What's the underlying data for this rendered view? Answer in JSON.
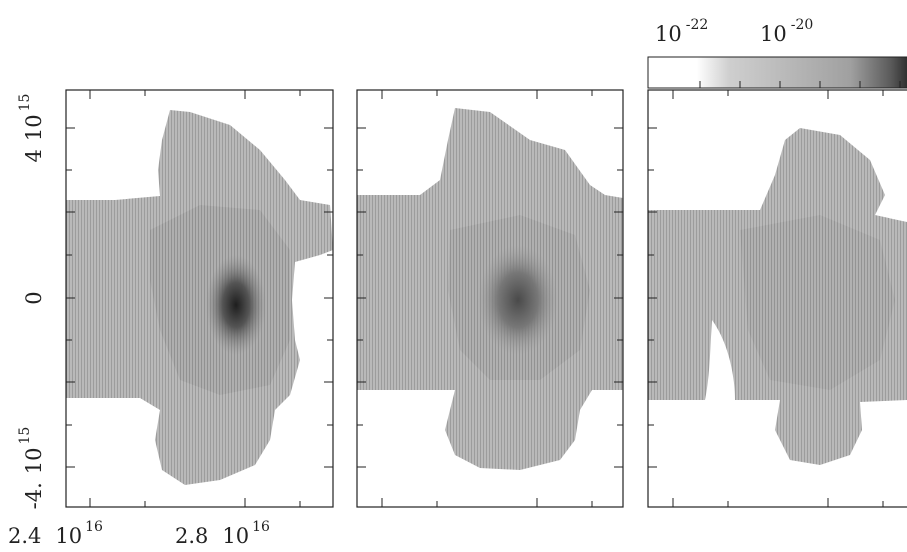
{
  "chart_data": {
    "type": "heatmap",
    "panels": [
      {
        "id": "panel-1",
        "x_tick_labels": [
          {
            "mantissa": "2.4",
            "base": "10",
            "exp": "16",
            "x": 2.4e+16
          },
          {
            "mantissa": "2.8",
            "base": "10",
            "exp": "16",
            "x": 2.8e+16
          }
        ],
        "y_tick_labels": [
          {
            "mantissa": "4",
            "base": "10",
            "exp": "15",
            "y": 4000000000000000.0
          },
          {
            "text": "0",
            "y": 0
          },
          {
            "mantissa": "-4.",
            "base": "10",
            "exp": "15",
            "y": -4000000000000000.0
          }
        ]
      },
      {
        "id": "panel-2"
      },
      {
        "id": "panel-3"
      }
    ],
    "colorbar": {
      "tick_labels": [
        {
          "base": "10",
          "exp": "-22",
          "value": 1e-22
        },
        {
          "base": "10",
          "exp": "-20",
          "value": 1e-20
        }
      ],
      "colors": [
        "#ffffff",
        "#d0d0d0",
        "#1a1a1a"
      ]
    },
    "colors": {
      "low": "#c9c9c9",
      "mid": "#9a9a9a",
      "high": "#1e1e1e",
      "axes": "#222222"
    }
  }
}
